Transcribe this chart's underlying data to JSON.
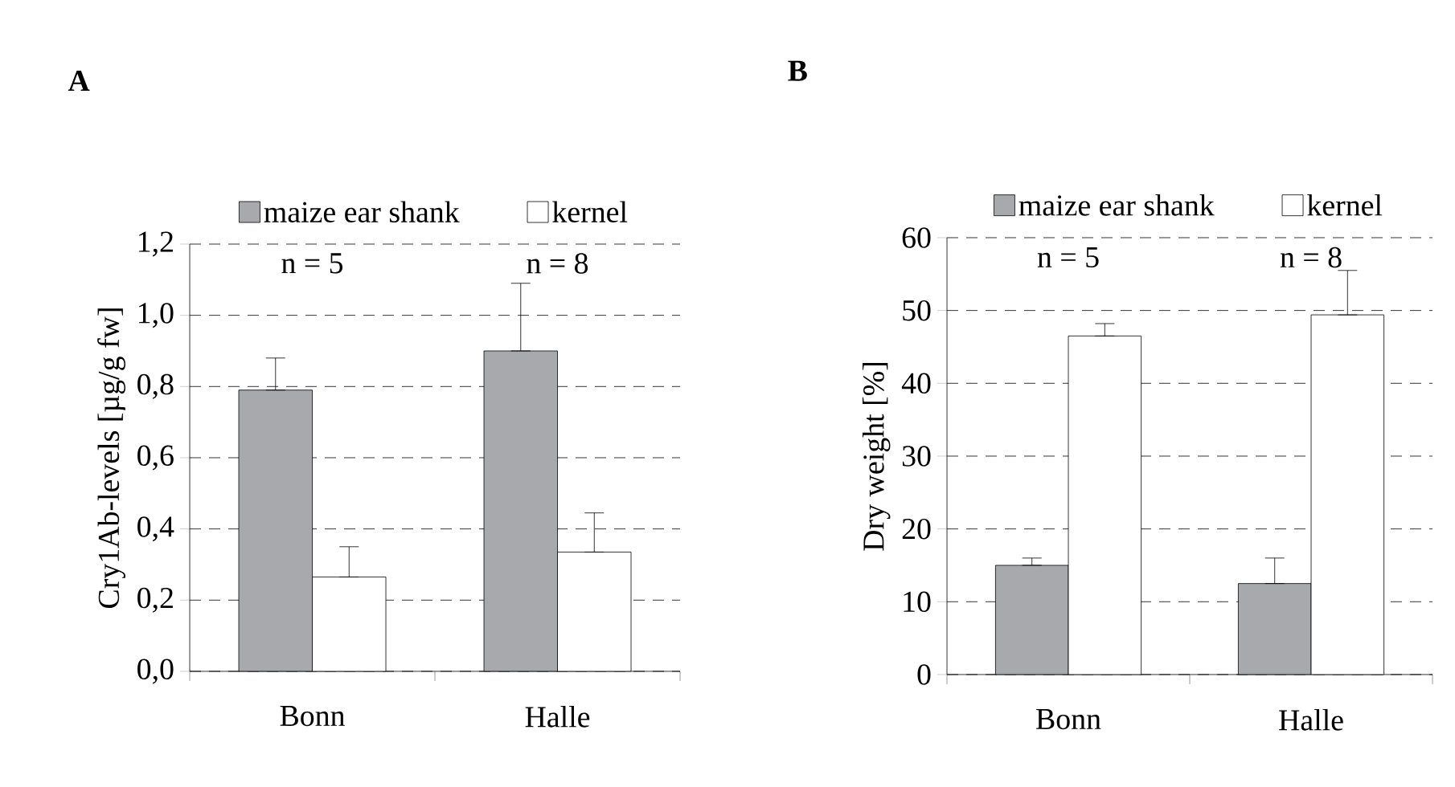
{
  "chart_data": [
    {
      "type": "bar",
      "title": "A",
      "ylabel": "Cry1Ab-levels [µg/g fw]",
      "categories": [
        "Bonn",
        "Halle"
      ],
      "series": [
        {
          "name": "maize ear shank",
          "color": "#a7a9ac",
          "values": [
            0.79,
            0.9
          ],
          "errors": [
            [
              0.79,
              0.88
            ],
            [
              0.9,
              1.09
            ]
          ]
        },
        {
          "name": "kernel",
          "color": "#ffffff",
          "values": [
            0.265,
            0.335
          ],
          "errors": [
            [
              0.265,
              0.35
            ],
            [
              0.335,
              0.445
            ]
          ]
        }
      ],
      "ylim": [
        0,
        1.2
      ],
      "yticks": [
        {
          "value": 0,
          "label": "0,0"
        },
        {
          "value": 0.2,
          "label": "0,2"
        },
        {
          "value": 0.4,
          "label": "0,4"
        },
        {
          "value": 0.6,
          "label": "0,6"
        },
        {
          "value": 0.8,
          "label": "0,8"
        },
        {
          "value": 1.0,
          "label": "1,0"
        },
        {
          "value": 1.2,
          "label": "1,2"
        }
      ],
      "grid": "y",
      "legend": "top",
      "annotations": [
        "n = 5",
        "n = 8"
      ]
    },
    {
      "type": "bar",
      "title": "B",
      "ylabel": "Dry weight [%]",
      "categories": [
        "Bonn",
        "Halle"
      ],
      "series": [
        {
          "name": "maize ear shank",
          "color": "#a7a9ac",
          "values": [
            15,
            12.5
          ],
          "errors": [
            [
              15,
              16
            ],
            [
              12.5,
              16
            ]
          ]
        },
        {
          "name": "kernel",
          "color": "#ffffff",
          "values": [
            46.5,
            49.4
          ],
          "errors": [
            [
              46.5,
              48.2
            ],
            [
              49.4,
              55.5
            ]
          ]
        }
      ],
      "ylim": [
        0,
        60
      ],
      "yticks": [
        0,
        10,
        20,
        30,
        40,
        50,
        60
      ],
      "grid": "y",
      "legend": "top",
      "annotations": [
        "n = 5",
        "n = 8"
      ]
    }
  ]
}
